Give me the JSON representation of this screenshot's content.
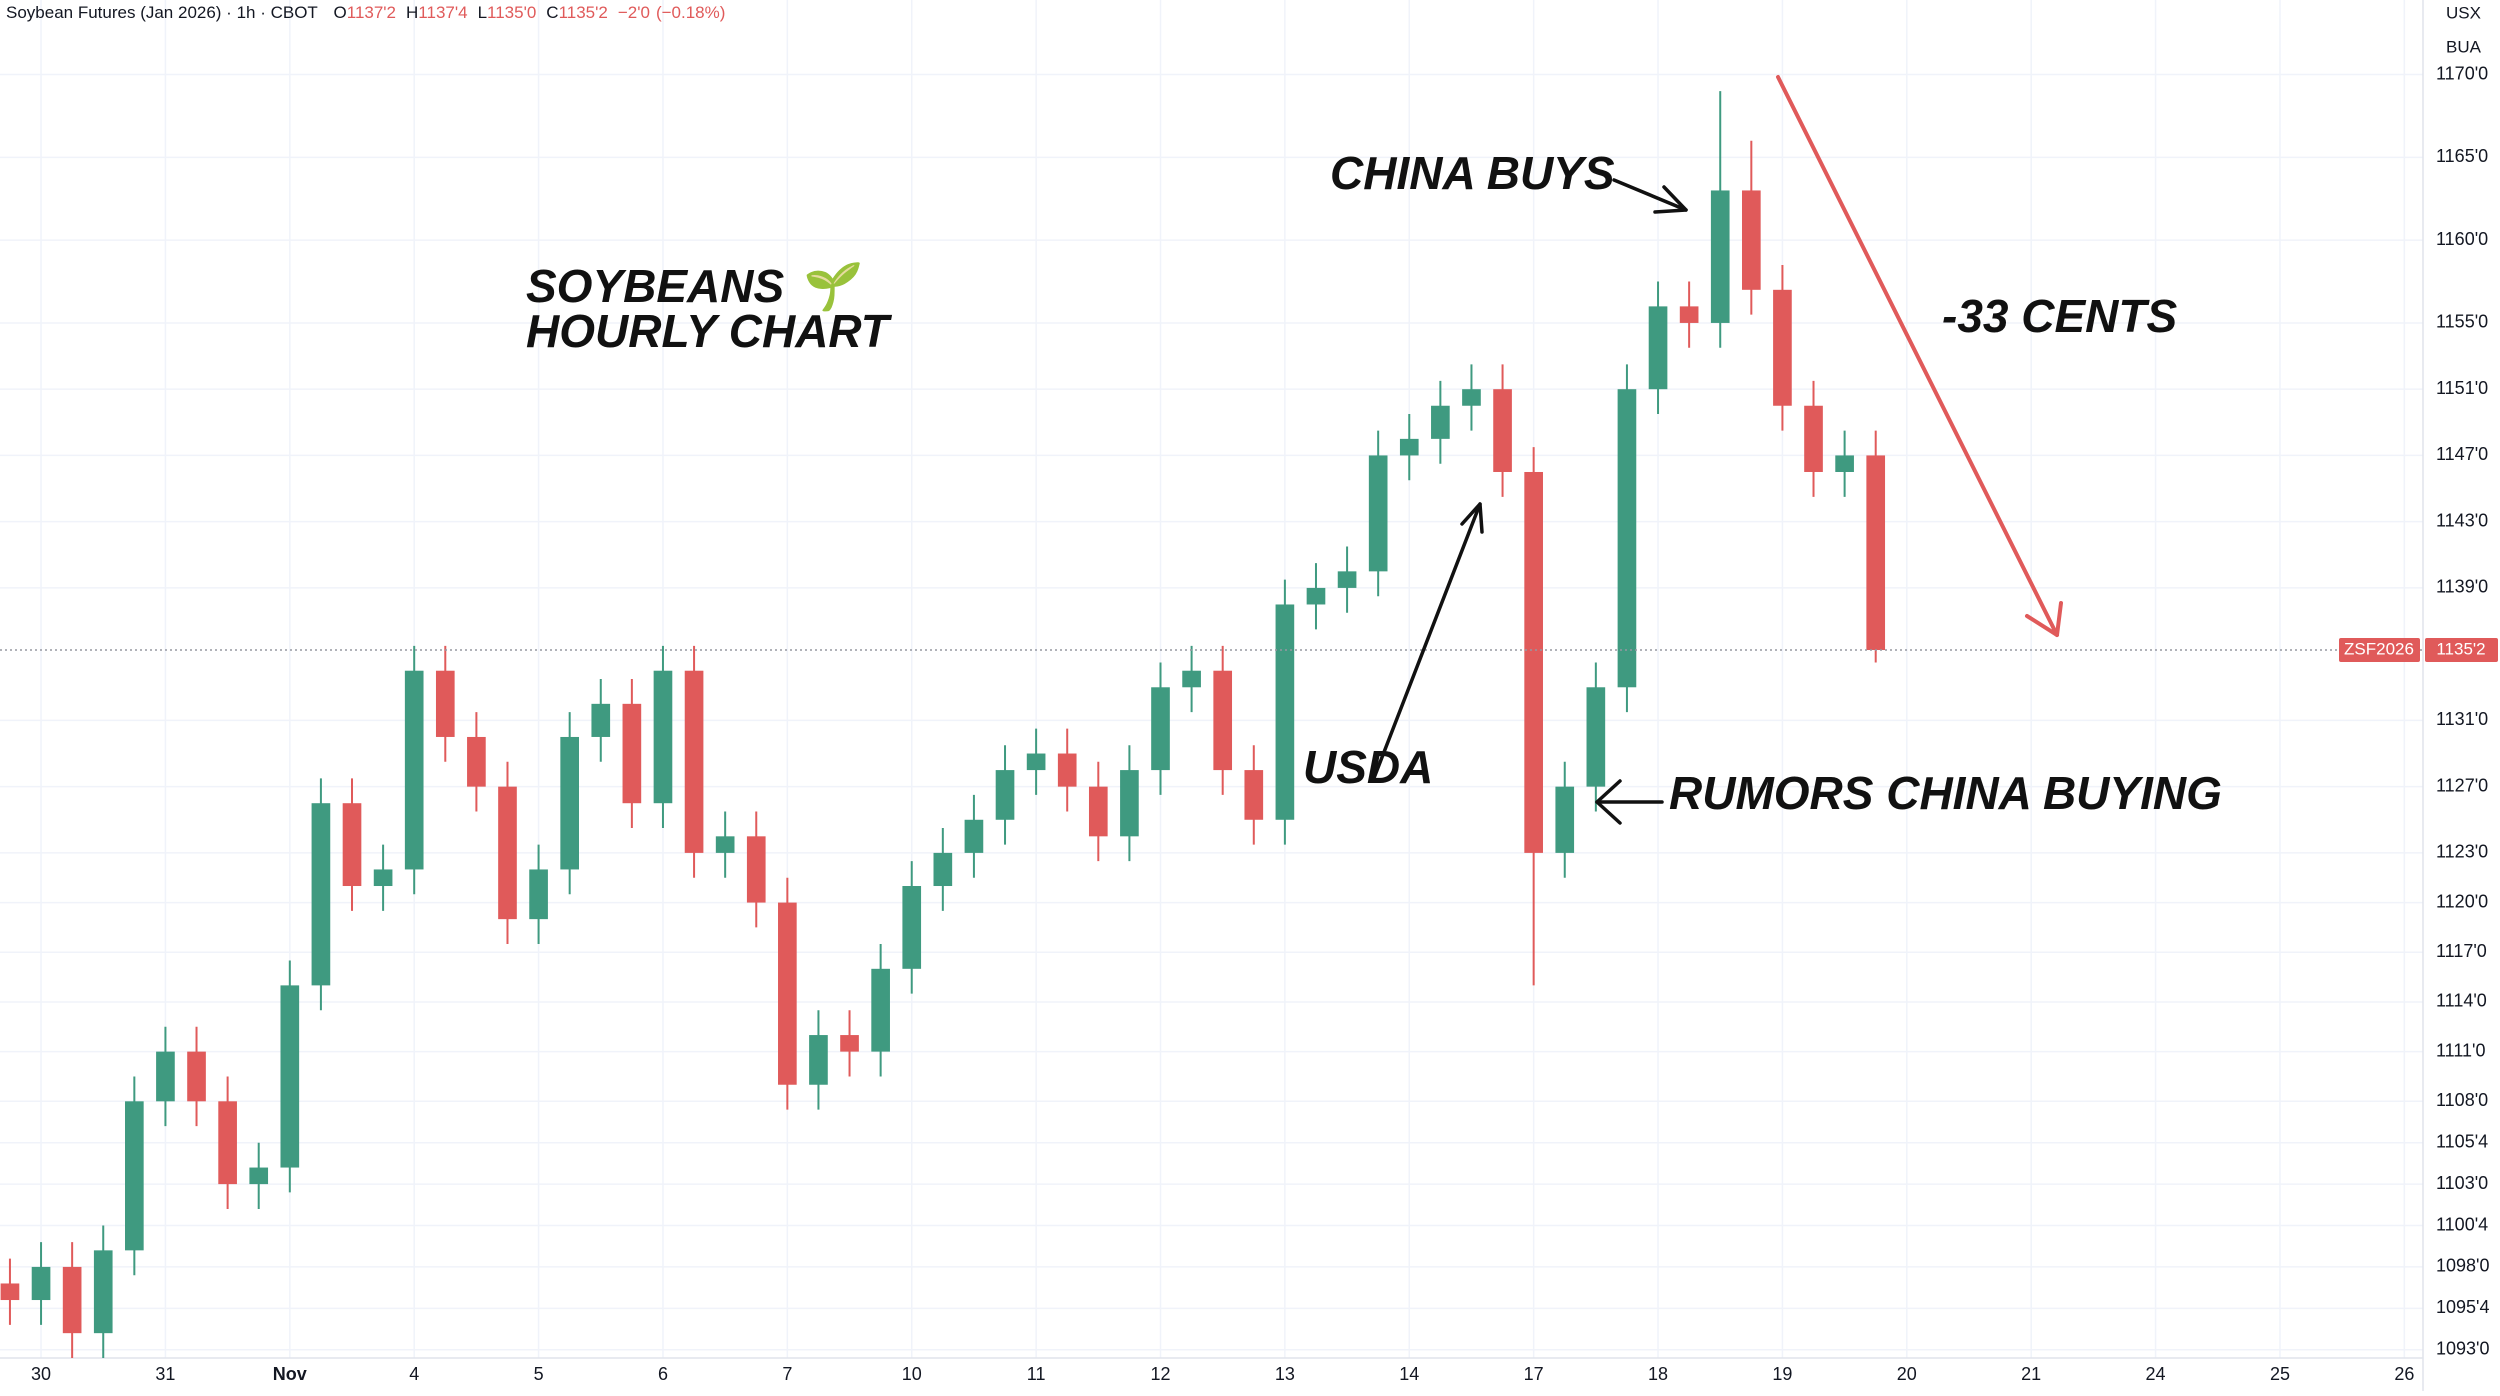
{
  "chart_data": {
    "type": "candlestick",
    "title": "Soybean Futures (Jan 2026) · 1h · CBOT",
    "ohlc": [
      {
        "name": "O",
        "value": 1137.25,
        "label": "1137'2"
      },
      {
        "name": "H",
        "value": 1137.5,
        "label": "1137'4"
      },
      {
        "name": "L",
        "value": 1135,
        "label": "1135'0"
      },
      {
        "name": "C",
        "value": 1135.25,
        "label": "1135'2"
      }
    ],
    "change": {
      "value": -2,
      "label": "−2'0"
    },
    "change_pct": {
      "value": -0.18,
      "label": "(−0.18%)"
    },
    "currency": "USX",
    "unit": "BUA",
    "annotations": [
      "SOYBEANS 🌱",
      "HOURLY CHART",
      "CHINA BUYS",
      "-33 CENTS",
      "USDA",
      "RUMORS CHINA BUYING"
    ],
    "symbol_tag": "ZSF2026",
    "last_price": {
      "value": 1135.25,
      "label": "1135'2"
    },
    "up_color": "#3f9a80",
    "down_color": "#e05a5a",
    "grid": true,
    "xlim": [
      -0.33,
      19.15
    ],
    "ylim": [
      1092.5,
      1174.5
    ],
    "xticks": [
      {
        "value": 0,
        "label": "30"
      },
      {
        "value": 1,
        "label": "31"
      },
      {
        "value": 2,
        "label": "Nov"
      },
      {
        "value": 3,
        "label": "4"
      },
      {
        "value": 4,
        "label": "5"
      },
      {
        "value": 5,
        "label": "6"
      },
      {
        "value": 6,
        "label": "7"
      },
      {
        "value": 7,
        "label": "10"
      },
      {
        "value": 8,
        "label": "11"
      },
      {
        "value": 9,
        "label": "12"
      },
      {
        "value": 10,
        "label": "13"
      },
      {
        "value": 11,
        "label": "14"
      },
      {
        "value": 12,
        "label": "17"
      },
      {
        "value": 13,
        "label": "18"
      },
      {
        "value": 14,
        "label": "19"
      },
      {
        "value": 15,
        "label": "20"
      },
      {
        "value": 16,
        "label": "21"
      },
      {
        "value": 17,
        "label": "24"
      },
      {
        "value": 18,
        "label": "25"
      },
      {
        "value": 19,
        "label": "26"
      }
    ],
    "yticks": [
      {
        "value": 1170,
        "label": "1170'0"
      },
      {
        "value": 1165,
        "label": "1165'0"
      },
      {
        "value": 1160,
        "label": "1160'0"
      },
      {
        "value": 1155,
        "label": "1155'0"
      },
      {
        "value": 1151,
        "label": "1151'0"
      },
      {
        "value": 1147,
        "label": "1147'0"
      },
      {
        "value": 1143,
        "label": "1143'0"
      },
      {
        "value": 1139,
        "label": "1139'0"
      },
      {
        "value": 1131,
        "label": "1131'0"
      },
      {
        "value": 1127,
        "label": "1127'0"
      },
      {
        "value": 1123,
        "label": "1123'0"
      },
      {
        "value": 1120,
        "label": "1120'0"
      },
      {
        "value": 1117,
        "label": "1117'0"
      },
      {
        "value": 1114,
        "label": "1114'0"
      },
      {
        "value": 1111,
        "label": "1111'0"
      },
      {
        "value": 1108,
        "label": "1108'0"
      },
      {
        "value": 1105.5,
        "label": "1105'4"
      },
      {
        "value": 1103,
        "label": "1103'0"
      },
      {
        "value": 1100.5,
        "label": "1100'4"
      },
      {
        "value": 1098,
        "label": "1098'0"
      },
      {
        "value": 1095.5,
        "label": "1095'4"
      },
      {
        "value": 1093,
        "label": "1093'0"
      }
    ],
    "x": [
      -0.25,
      0,
      0.25,
      0.5,
      0.75,
      1,
      1.25,
      1.5,
      1.75,
      2,
      2.25,
      2.5,
      2.75,
      3,
      3.25,
      3.5,
      3.75,
      4,
      4.25,
      4.5,
      4.75,
      5,
      5.25,
      5.5,
      5.75,
      6,
      6.25,
      6.5,
      6.75,
      7,
      7.25,
      7.5,
      7.75,
      8,
      8.25,
      8.5,
      8.75,
      9,
      9.25,
      9.5,
      9.75,
      10,
      10.25,
      10.5,
      10.75,
      11,
      11.25,
      11.5,
      11.75,
      12,
      12.25,
      12.5,
      12.75,
      13,
      13.25,
      13.5,
      13.75,
      14,
      14.25,
      14.5,
      14.75
    ],
    "open": [
      1097,
      1096,
      1098,
      1094,
      1099,
      1108,
      1111,
      1108,
      1103,
      1104,
      1115,
      1126,
      1121,
      1122,
      1134,
      1130,
      1127,
      1119,
      1122,
      1130,
      1132,
      1126,
      1134,
      1123,
      1124,
      1120,
      1109,
      1112,
      1111,
      1116,
      1121,
      1123,
      1125,
      1128,
      1129,
      1127,
      1124,
      1128,
      1133,
      1134,
      1128,
      1125,
      1138,
      1139,
      1140,
      1147,
      1148,
      1150,
      1151,
      1146,
      1123,
      1127,
      1133,
      1151,
      1156,
      1155,
      1163,
      1157,
      1150,
      1146,
      1147
    ],
    "high": [
      1098.5,
      1099.5,
      1099.5,
      1100.5,
      1109.5,
      1112.5,
      1112.5,
      1109.5,
      1105.5,
      1116.5,
      1127.5,
      1127.5,
      1123.5,
      1135.5,
      1135.5,
      1131.5,
      1128.5,
      1123.5,
      1131.5,
      1133.5,
      1133.5,
      1135.5,
      1135.5,
      1125.5,
      1125.5,
      1121.5,
      1113.5,
      1113.5,
      1117.5,
      1122.5,
      1124.5,
      1126.5,
      1129.5,
      1130.5,
      1130.5,
      1128.5,
      1129.5,
      1134.5,
      1135.5,
      1135.5,
      1129.5,
      1139.5,
      1140.5,
      1141.5,
      1148.5,
      1149.5,
      1151.5,
      1152.5,
      1152.5,
      1147.5,
      1128.5,
      1134.5,
      1152.5,
      1157.5,
      1157.5,
      1169,
      1166,
      1158.5,
      1151.5,
      1148.5,
      1148.5
    ],
    "low": [
      1094.5,
      1094.5,
      1092.5,
      1092.5,
      1097.5,
      1106.5,
      1106.5,
      1101.5,
      1101.5,
      1102.5,
      1113.5,
      1119.5,
      1119.5,
      1120.5,
      1128.5,
      1125.5,
      1117.5,
      1117.5,
      1120.5,
      1128.5,
      1124.5,
      1124.5,
      1121.5,
      1121.5,
      1118.5,
      1107.5,
      1107.5,
      1109.5,
      1109.5,
      1114.5,
      1119.5,
      1121.5,
      1123.5,
      1126.5,
      1125.5,
      1122.5,
      1122.5,
      1126.5,
      1131.5,
      1126.5,
      1123.5,
      1123.5,
      1136.5,
      1137.5,
      1138.5,
      1145.5,
      1146.5,
      1148.5,
      1144.5,
      1115,
      1121.5,
      1125.5,
      1131.5,
      1149.5,
      1153.5,
      1153.5,
      1155.5,
      1148.5,
      1144.5,
      1144.5,
      1134.5
    ],
    "close": [
      1096,
      1098,
      1094,
      1099,
      1108,
      1111,
      1108,
      1103,
      1104,
      1115,
      1126,
      1121,
      1122,
      1134,
      1130,
      1127,
      1119,
      1122,
      1130,
      1132,
      1126,
      1134,
      1123,
      1124,
      1120,
      1109,
      1112,
      1111,
      1116,
      1121,
      1123,
      1125,
      1128,
      1129,
      1127,
      1124,
      1128,
      1133,
      1134,
      1128,
      1125,
      1138,
      1139,
      1140,
      1147,
      1148,
      1150,
      1151,
      1146,
      1123,
      1127,
      1133,
      1151,
      1156,
      1155,
      1163,
      1157,
      1150,
      1146,
      1147,
      1135.25
    ]
  }
}
